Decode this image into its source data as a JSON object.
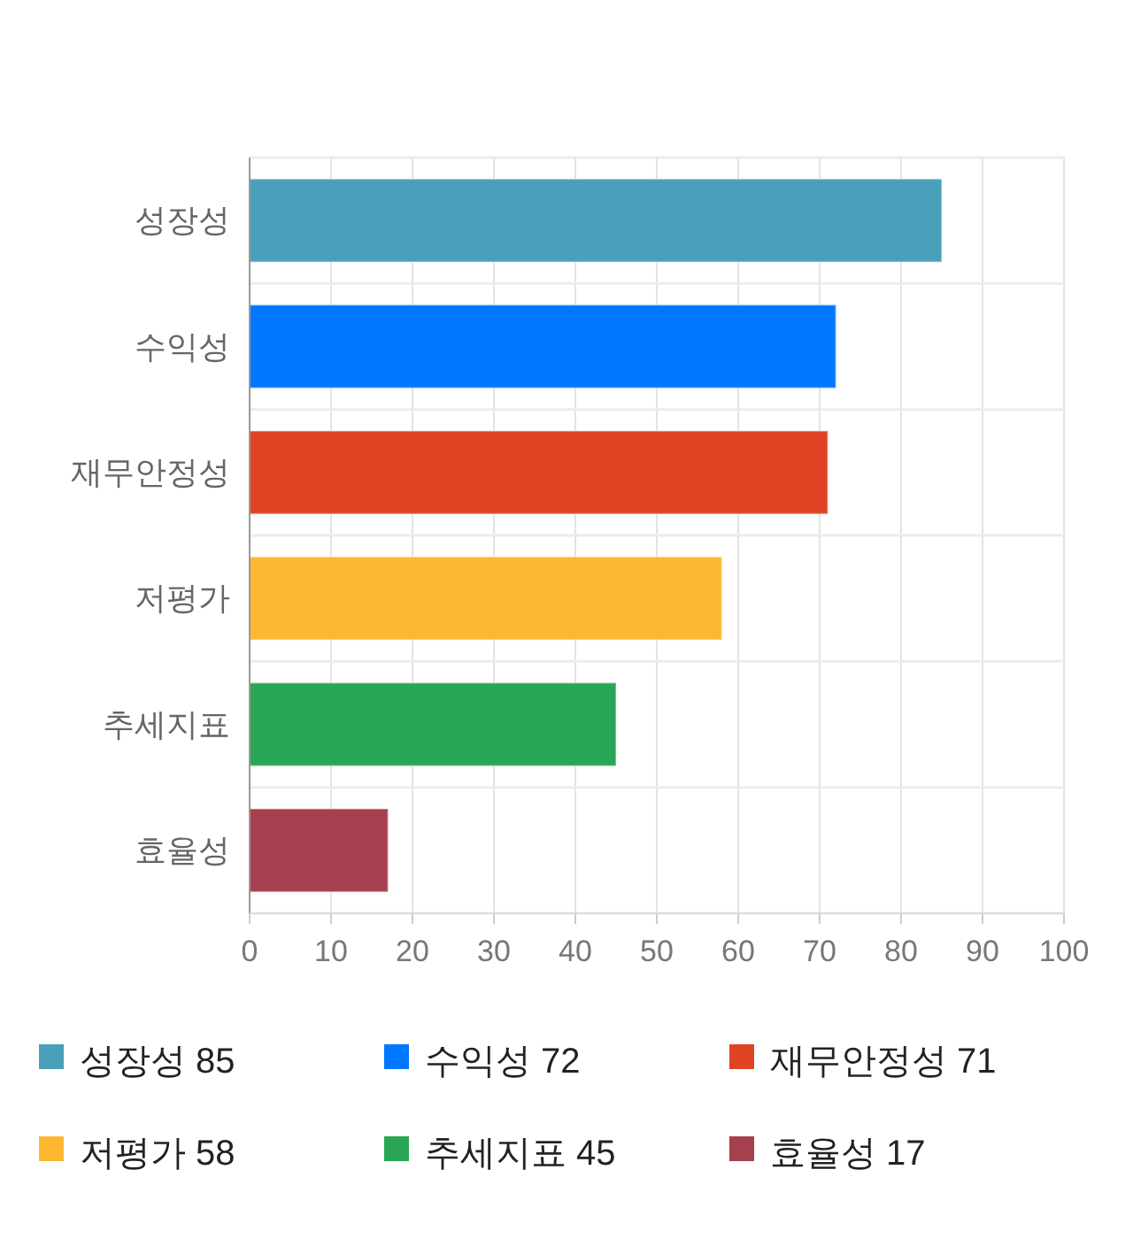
{
  "chart_data": {
    "type": "bar",
    "orientation": "horizontal",
    "stacked": true,
    "categories": [
      "성장성",
      "수익성",
      "재무안정성",
      "저평가",
      "추세지표",
      "효율성"
    ],
    "series": [
      {
        "name": "성장성 85",
        "color": "#4aa0ba",
        "values": [
          85,
          null,
          null,
          null,
          null,
          null
        ]
      },
      {
        "name": "수익성 72",
        "color": "#0077ff",
        "values": [
          null,
          72,
          null,
          null,
          null,
          null
        ]
      },
      {
        "name": "재무안정성 71",
        "color": "#e04424",
        "values": [
          null,
          null,
          71,
          null,
          null,
          null
        ]
      },
      {
        "name": "저평가 58",
        "color": "#fdb731",
        "values": [
          null,
          null,
          null,
          58,
          null,
          null
        ]
      },
      {
        "name": "추세지표 45",
        "color": "#29a655",
        "values": [
          null,
          null,
          null,
          null,
          45,
          null
        ]
      },
      {
        "name": "효율성 17",
        "color": "#a6404f",
        "values": [
          null,
          null,
          null,
          null,
          null,
          17
        ]
      }
    ],
    "xlim": [
      0,
      100
    ],
    "xticks": [
      0,
      10,
      20,
      30,
      40,
      50,
      60,
      70,
      80,
      90,
      100
    ],
    "grid": true,
    "legend": "bottom"
  }
}
